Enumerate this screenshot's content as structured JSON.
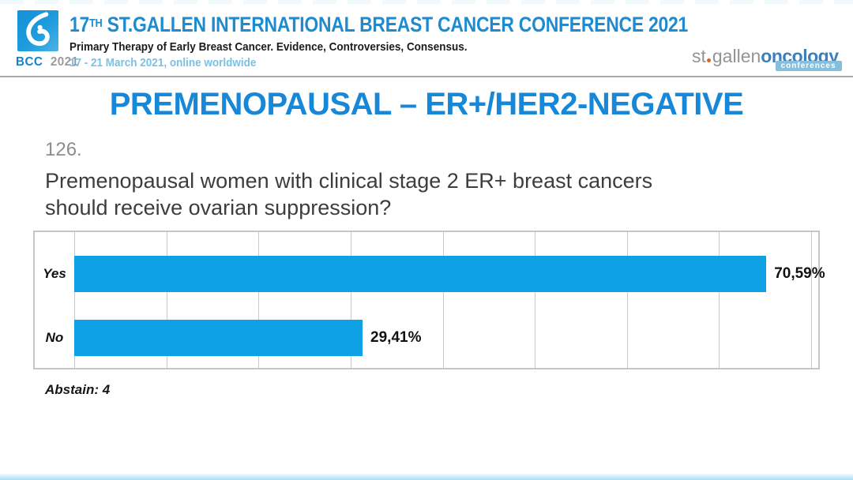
{
  "header": {
    "logo_text": "BCC",
    "logo_year": "2021",
    "title_num": "17",
    "title_sup": "TH",
    "title_rest": " ST.GALLEN INTERNATIONAL BREAST CANCER CONFERENCE 2021",
    "subtitle": "Primary Therapy of Early Breast Cancer. Evidence, Controversies, Consensus.",
    "dates": "17 - 21 March 2021, online worldwide",
    "org_logo": {
      "part1": "st",
      "part2": "gallen",
      "part3": "oncology",
      "badge": "conferences"
    }
  },
  "slide": {
    "title": "PREMENOPAUSAL – ER+/HER2-NEGATIVE",
    "question_number": "126.",
    "question": "Premenopausal women with clinical stage 2 ER+ breast cancers should receive ovarian suppression?",
    "abstain_note": "Abstain: 4"
  },
  "chart_data": {
    "type": "bar",
    "orientation": "horizontal",
    "title": "",
    "categories": [
      "Yes",
      "No"
    ],
    "values": [
      70.59,
      29.41
    ],
    "value_labels": [
      "70,59%",
      "29,41%"
    ],
    "xlim": [
      0,
      80
    ],
    "gridline_step": 10,
    "grid": true,
    "legend": false,
    "note": "Abstain: 4"
  },
  "colors": {
    "brand_blue": "#1e8bd1",
    "slide_title_blue": "#1787d8",
    "bar_blue": "#0fa1e6",
    "dates_light_blue": "#7cc0e4",
    "org_badge_blue": "#86bedd",
    "org_dot_orange": "#d4622a"
  }
}
